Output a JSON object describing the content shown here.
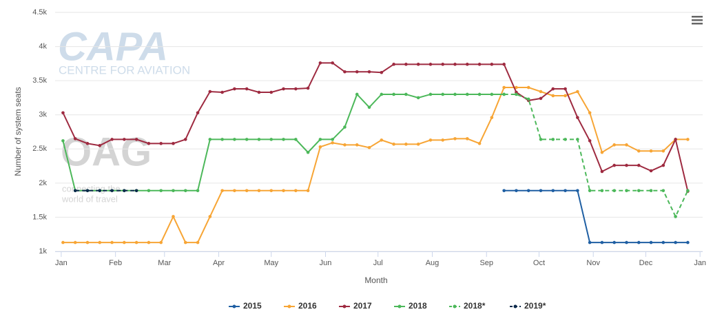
{
  "chart_data": {
    "type": "line",
    "watermark": [
      "CAPA",
      "CENTRE FOR AVIATION",
      "OAG",
      "connecting the",
      "world of travel"
    ],
    "x_label": "Month",
    "y_label": "Number of system seats",
    "x": [
      1,
      8,
      15,
      22,
      29,
      36,
      43,
      50,
      57,
      64,
      71,
      78,
      85,
      92,
      99,
      106,
      113,
      120,
      127,
      134,
      141,
      148,
      155,
      162,
      169,
      176,
      183,
      190,
      197,
      204,
      211,
      218,
      225,
      232,
      239,
      246,
      253,
      260,
      267,
      274,
      281,
      288,
      295,
      302,
      309,
      316,
      323,
      330,
      337,
      344,
      351,
      358
    ],
    "xlim": [
      -3.5,
      366.5
    ],
    "xticks": [
      {
        "value": 0,
        "label": "Jan"
      },
      {
        "value": 31,
        "label": "Feb"
      },
      {
        "value": 59,
        "label": "Mar"
      },
      {
        "value": 90,
        "label": "Apr"
      },
      {
        "value": 120,
        "label": "May"
      },
      {
        "value": 151,
        "label": "Jun"
      },
      {
        "value": 181,
        "label": "Jul"
      },
      {
        "value": 212,
        "label": "Aug"
      },
      {
        "value": 243,
        "label": "Sep"
      },
      {
        "value": 273,
        "label": "Oct"
      },
      {
        "value": 304,
        "label": "Nov"
      },
      {
        "value": 334,
        "label": "Dec"
      },
      {
        "value": 365,
        "label": "Jan"
      }
    ],
    "ylim": [
      1000,
      4500
    ],
    "yticks": [
      {
        "value": 1000,
        "label": "1k"
      },
      {
        "value": 1500,
        "label": "1.5k"
      },
      {
        "value": 2000,
        "label": "2k"
      },
      {
        "value": 2500,
        "label": "2.5k"
      },
      {
        "value": 3000,
        "label": "3k"
      },
      {
        "value": 3500,
        "label": "3.5k"
      },
      {
        "value": 4000,
        "label": "4k"
      },
      {
        "value": 4500,
        "label": "4.5k"
      }
    ],
    "grid": true,
    "legend": "bottom",
    "series": [
      {
        "name": "2015",
        "color": "#1f5fa3",
        "line_style": "solid",
        "values": [
          null,
          null,
          null,
          null,
          null,
          null,
          null,
          null,
          null,
          null,
          null,
          null,
          null,
          null,
          null,
          null,
          null,
          null,
          null,
          null,
          null,
          null,
          null,
          null,
          null,
          null,
          null,
          null,
          null,
          null,
          null,
          null,
          null,
          null,
          null,
          null,
          1890,
          1890,
          1890,
          1890,
          1890,
          1890,
          1890,
          1130,
          1130,
          1130,
          1130,
          1130,
          1130,
          1130,
          1130,
          1130
        ]
      },
      {
        "name": "2016",
        "color": "#f7a535",
        "line_style": "solid",
        "values": [
          1130,
          1130,
          1130,
          1130,
          1130,
          1130,
          1130,
          1130,
          1130,
          1510,
          1130,
          1130,
          1510,
          1890,
          1890,
          1890,
          1890,
          1890,
          1890,
          1890,
          1890,
          2530,
          2590,
          2560,
          2560,
          2520,
          2630,
          2570,
          2570,
          2570,
          2630,
          2630,
          2650,
          2650,
          2580,
          2960,
          3400,
          3400,
          3400,
          3340,
          3280,
          3280,
          3340,
          3030,
          2450,
          2560,
          2560,
          2470,
          2470,
          2470,
          2640,
          2640
        ]
      },
      {
        "name": "2017",
        "color": "#9e2a40",
        "line_style": "solid",
        "values": [
          3030,
          2650,
          2580,
          2550,
          2640,
          2640,
          2640,
          2580,
          2580,
          2580,
          2640,
          3030,
          3340,
          3330,
          3380,
          3380,
          3330,
          3330,
          3380,
          3380,
          3390,
          3760,
          3760,
          3630,
          3630,
          3630,
          3620,
          3740,
          3740,
          3740,
          3740,
          3740,
          3740,
          3740,
          3740,
          3740,
          3740,
          3330,
          3210,
          3240,
          3380,
          3380,
          2960,
          2620,
          2170,
          2260,
          2260,
          2260,
          2180,
          2260,
          2640,
          1880
        ]
      },
      {
        "name": "2018",
        "color": "#4cb85a",
        "line_style": "solid",
        "values": [
          2620,
          1890,
          1890,
          1890,
          1890,
          1890,
          1890,
          1890,
          1890,
          1890,
          1890,
          1890,
          2640,
          2640,
          2640,
          2640,
          2640,
          2640,
          2640,
          2640,
          2450,
          2640,
          2640,
          2820,
          3300,
          3110,
          3300,
          3300,
          3300,
          3250,
          3300,
          3300,
          3300,
          3300,
          3300,
          3300,
          3300,
          null,
          null,
          null,
          null,
          null,
          null,
          null,
          null,
          null,
          null,
          null,
          null,
          null,
          null,
          null
        ]
      },
      {
        "name": "2018*",
        "color": "#4cb85a",
        "line_style": "dashed",
        "values": [
          null,
          null,
          null,
          null,
          null,
          null,
          null,
          null,
          null,
          null,
          null,
          null,
          null,
          null,
          null,
          null,
          null,
          null,
          null,
          null,
          null,
          null,
          null,
          null,
          null,
          null,
          null,
          null,
          null,
          null,
          null,
          null,
          null,
          null,
          null,
          null,
          3300,
          3300,
          3230,
          2640,
          2640,
          2640,
          2640,
          1890,
          1890,
          1890,
          1890,
          1890,
          1890,
          1890,
          1510,
          1890
        ]
      },
      {
        "name": "2019*",
        "color": "#0d2b4c",
        "line_style": "dashed",
        "values": [
          null,
          1890,
          1890,
          1890,
          1890,
          1890,
          1890,
          null,
          null,
          null,
          null,
          null,
          null,
          null,
          null,
          null,
          null,
          null,
          null,
          null,
          null,
          null,
          null,
          null,
          null,
          null,
          null,
          null,
          null,
          null,
          null,
          null,
          null,
          null,
          null,
          null,
          null,
          null,
          null,
          null,
          null,
          null,
          null,
          null,
          null,
          null,
          null,
          null,
          null,
          null,
          null,
          null
        ]
      }
    ]
  }
}
